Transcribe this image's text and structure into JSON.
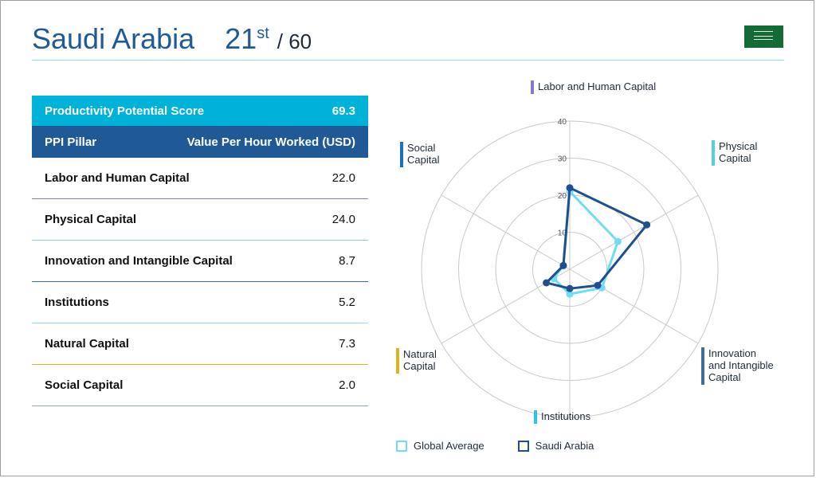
{
  "header": {
    "country": "Saudi Arabia",
    "rank": "21",
    "rank_suffix": "st",
    "rank_total": "/ 60"
  },
  "table": {
    "score_label": "Productivity Potential Score",
    "score_value": "69.3",
    "col_pillar": "PPI Pillar",
    "col_value": "Value Per Hour Worked (USD)",
    "rows": [
      {
        "label": "Labor and Human Capital",
        "value": "22.0",
        "color": "#8b79c7"
      },
      {
        "label": "Physical Capital",
        "value": "24.0",
        "color": "#7fd6e3"
      },
      {
        "label": "Innovation and Intangible Capital",
        "value": "8.7",
        "color": "#3a6fa0"
      },
      {
        "label": "Institutions",
        "value": "5.2",
        "color": "#8fe3f0"
      },
      {
        "label": "Natural Capital",
        "value": "7.3",
        "color": "#e0b21c"
      },
      {
        "label": "Social Capital",
        "value": "2.0",
        "color": "#8fa5bf"
      }
    ]
  },
  "chart_data": {
    "type": "radar",
    "axes": [
      "Labor and Human Capital",
      "Physical Capital",
      "Innovation and Intangible Capital",
      "Institutions",
      "Natural Capital",
      "Social Capital"
    ],
    "axis_label_lines": [
      [
        "Labor and Human Capital"
      ],
      [
        "Physical",
        "Capital"
      ],
      [
        "Innovation",
        "and Intangible",
        "Capital"
      ],
      [
        "Institutions"
      ],
      [
        "Natural",
        "Capital"
      ],
      [
        "Social",
        "Capital"
      ]
    ],
    "axis_colors": [
      "#8b79c7",
      "#4fd4dc",
      "#3a6fa0",
      "#2cc4e8",
      "#e0b21c",
      "#1f6fc0"
    ],
    "ticks": [
      10,
      20,
      30,
      40
    ],
    "tick_labels": [
      "10",
      "20",
      "30",
      "40"
    ],
    "rmax": 40,
    "series": [
      {
        "name": "Global Average",
        "color": "#6fdcf2",
        "values": [
          21.0,
          15.0,
          10.0,
          6.7,
          5.0,
          2.0
        ]
      },
      {
        "name": "Saudi Arabia",
        "color": "#1f4f8f",
        "values": [
          22.0,
          24.0,
          8.7,
          5.2,
          7.3,
          2.0
        ]
      }
    ],
    "legend_position": "bottom-left"
  }
}
